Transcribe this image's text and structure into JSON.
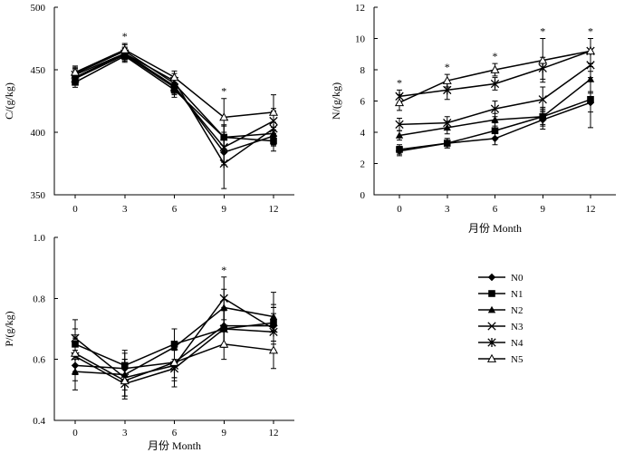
{
  "chart_data": [
    {
      "id": "C",
      "type": "line",
      "ylabel": "C/(g/kg)",
      "xlabel": "",
      "x": [
        0,
        3,
        6,
        9,
        12
      ],
      "ylim": [
        350,
        500
      ],
      "yticks": [
        350,
        400,
        450,
        500
      ],
      "xticks": [
        0,
        3,
        6,
        9,
        12
      ],
      "significance": [
        3,
        9
      ],
      "series": [
        {
          "name": "N0",
          "marker": "diamond",
          "values": [
            444,
            463,
            437,
            384,
            397
          ],
          "errors": [
            6,
            5,
            6,
            10,
            7
          ]
        },
        {
          "name": "N1",
          "marker": "square",
          "values": [
            440,
            461,
            434,
            396,
            393
          ],
          "errors": [
            4,
            5,
            6,
            9,
            8
          ]
        },
        {
          "name": "N2",
          "marker": "triangle",
          "values": [
            447,
            465,
            439,
            396,
            399
          ],
          "errors": [
            5,
            5,
            5,
            10,
            9
          ]
        },
        {
          "name": "N3",
          "marker": "x",
          "values": [
            443,
            462,
            436,
            388,
            409
          ],
          "errors": [
            5,
            5,
            6,
            12,
            10
          ]
        },
        {
          "name": "N4",
          "marker": "star",
          "values": [
            446,
            463,
            441,
            375,
            403
          ],
          "errors": [
            5,
            5,
            6,
            20,
            14
          ]
        },
        {
          "name": "N5",
          "marker": "triangle-open",
          "values": [
            448,
            466,
            444,
            412,
            416
          ],
          "errors": [
            5,
            5,
            5,
            15,
            14
          ]
        }
      ]
    },
    {
      "id": "N",
      "type": "line",
      "ylabel": "N/(g/kg)",
      "xlabel": "月份 Month",
      "x": [
        0,
        3,
        6,
        9,
        12
      ],
      "ylim": [
        0,
        12
      ],
      "yticks": [
        0,
        2,
        4,
        6,
        8,
        10,
        12
      ],
      "xticks": [
        0,
        3,
        6,
        9,
        12
      ],
      "significance": [
        0,
        3,
        6,
        9,
        12
      ],
      "series": [
        {
          "name": "N0",
          "marker": "diamond",
          "values": [
            2.8,
            3.3,
            3.6,
            4.8,
            5.9
          ],
          "errors": [
            0.3,
            0.3,
            0.4,
            0.6,
            0.6
          ]
        },
        {
          "name": "N1",
          "marker": "square",
          "values": [
            2.9,
            3.3,
            4.1,
            5.0,
            6.1
          ],
          "errors": [
            0.3,
            0.3,
            0.5,
            0.6,
            1.8
          ]
        },
        {
          "name": "N2",
          "marker": "triangle",
          "values": [
            3.8,
            4.3,
            4.8,
            5.0,
            7.4
          ],
          "errors": [
            0.3,
            0.4,
            0.4,
            0.5,
            0.8
          ]
        },
        {
          "name": "N3",
          "marker": "x",
          "values": [
            4.5,
            4.6,
            5.5,
            6.1,
            8.3
          ],
          "errors": [
            0.4,
            0.4,
            0.5,
            0.8,
            0.8
          ]
        },
        {
          "name": "N4",
          "marker": "star",
          "values": [
            6.3,
            6.7,
            7.1,
            8.1,
            9.2
          ],
          "errors": [
            0.4,
            0.6,
            0.4,
            0.7,
            0.8
          ]
        },
        {
          "name": "N5",
          "marker": "triangle-open",
          "values": [
            5.9,
            7.3,
            8.0,
            8.6,
            9.2
          ],
          "errors": [
            0.5,
            0.4,
            0.4,
            1.4,
            0.8
          ]
        }
      ]
    },
    {
      "id": "P",
      "type": "line",
      "ylabel": "P/(g/kg)",
      "xlabel": "月份 Month",
      "x": [
        0,
        3,
        6,
        9,
        12
      ],
      "ylim": [
        0.4,
        1.0
      ],
      "yticks": [
        0.4,
        0.6,
        0.8,
        1.0
      ],
      "xticks": [
        0,
        3,
        6,
        9,
        12
      ],
      "significance": [
        9
      ],
      "series": [
        {
          "name": "N0",
          "marker": "diamond",
          "values": [
            0.58,
            0.57,
            0.59,
            0.71,
            0.71
          ],
          "errors": [
            0.05,
            0.05,
            0.05,
            0.06,
            0.06
          ]
        },
        {
          "name": "N1",
          "marker": "square",
          "values": [
            0.65,
            0.58,
            0.65,
            0.7,
            0.72
          ],
          "errors": [
            0.05,
            0.05,
            0.05,
            0.06,
            0.06
          ]
        },
        {
          "name": "N2",
          "marker": "triangle",
          "values": [
            0.56,
            0.55,
            0.64,
            0.77,
            0.74
          ],
          "errors": [
            0.06,
            0.05,
            0.06,
            0.06,
            0.08
          ]
        },
        {
          "name": "N3",
          "marker": "x",
          "values": [
            0.67,
            0.54,
            0.58,
            0.8,
            0.7
          ],
          "errors": [
            0.06,
            0.06,
            0.05,
            0.07,
            0.07
          ]
        },
        {
          "name": "N4",
          "marker": "star",
          "values": [
            0.61,
            0.52,
            0.57,
            0.7,
            0.69
          ],
          "errors": [
            0.06,
            0.05,
            0.06,
            0.06,
            0.06
          ]
        },
        {
          "name": "N5",
          "marker": "triangle-open",
          "values": [
            0.62,
            0.53,
            0.59,
            0.65,
            0.63
          ],
          "errors": [
            0.06,
            0.05,
            0.05,
            0.05,
            0.06
          ]
        }
      ]
    }
  ],
  "legend": {
    "items": [
      {
        "label": "N0",
        "marker": "diamond"
      },
      {
        "label": "N1",
        "marker": "square"
      },
      {
        "label": "N2",
        "marker": "triangle"
      },
      {
        "label": "N3",
        "marker": "x"
      },
      {
        "label": "N4",
        "marker": "star"
      },
      {
        "label": "N5",
        "marker": "triangle-open"
      }
    ]
  },
  "significance_symbol": "*"
}
